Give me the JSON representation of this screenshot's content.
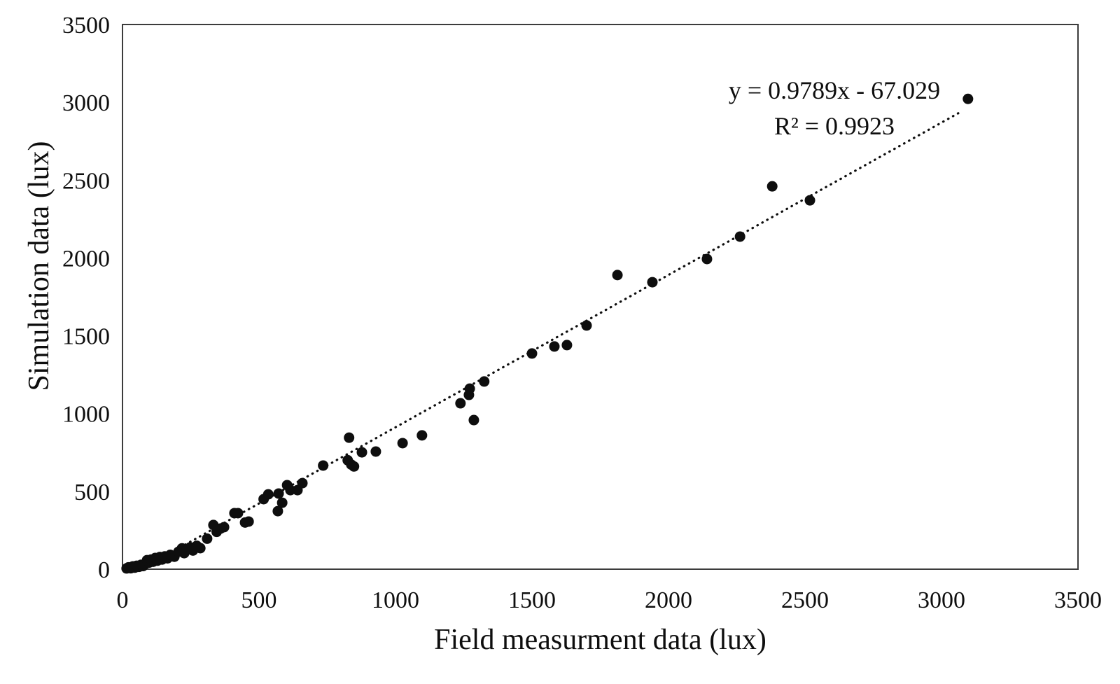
{
  "figure": {
    "annotation_line1": "y = 0.9789x - 67.029",
    "annotation_line2": "R² = 0.9923"
  },
  "chart_data": {
    "type": "scatter",
    "title": "",
    "xlabel": "Field measurment data (lux)",
    "ylabel": "Simulation data (lux)",
    "xlim": [
      0,
      3500
    ],
    "ylim": [
      0,
      3500
    ],
    "x_ticks": [
      0,
      500,
      1000,
      1500,
      2000,
      2500,
      3000,
      3500
    ],
    "y_ticks": [
      0,
      500,
      1000,
      1500,
      2000,
      2500,
      3000,
      3500
    ],
    "grid": false,
    "legend": "none",
    "marker_color": "#0e0e0e",
    "axis_color": "#3c3c3c",
    "trendline": {
      "type": "linear",
      "style": "dotted",
      "slope": 0.9789,
      "intercept": -67.029,
      "r_squared": 0.9923,
      "x_start": 68.5,
      "x_end": 3075
    },
    "points": [
      [
        15,
        5
      ],
      [
        22,
        12
      ],
      [
        30,
        6
      ],
      [
        38,
        18
      ],
      [
        45,
        10
      ],
      [
        52,
        22
      ],
      [
        60,
        15
      ],
      [
        68,
        28
      ],
      [
        75,
        20
      ],
      [
        82,
        32
      ],
      [
        90,
        58
      ],
      [
        97,
        42
      ],
      [
        105,
        62
      ],
      [
        112,
        48
      ],
      [
        120,
        72
      ],
      [
        128,
        55
      ],
      [
        137,
        78
      ],
      [
        145,
        62
      ],
      [
        155,
        82
      ],
      [
        165,
        70
      ],
      [
        175,
        92
      ],
      [
        190,
        80
      ],
      [
        205,
        112
      ],
      [
        218,
        134
      ],
      [
        226,
        103
      ],
      [
        240,
        128
      ],
      [
        248,
        140
      ],
      [
        258,
        120
      ],
      [
        272,
        150
      ],
      [
        285,
        135
      ],
      [
        310,
        196
      ],
      [
        333,
        284
      ],
      [
        345,
        240
      ],
      [
        359,
        261
      ],
      [
        372,
        270
      ],
      [
        410,
        360
      ],
      [
        423,
        360
      ],
      [
        449,
        300
      ],
      [
        462,
        306
      ],
      [
        517,
        450
      ],
      [
        534,
        481
      ],
      [
        569,
        373
      ],
      [
        572,
        486
      ],
      [
        585,
        427
      ],
      [
        603,
        540
      ],
      [
        615,
        508
      ],
      [
        641,
        508
      ],
      [
        659,
        553
      ],
      [
        735,
        666
      ],
      [
        825,
        700
      ],
      [
        838,
        672
      ],
      [
        830,
        845
      ],
      [
        848,
        660
      ],
      [
        877,
        751
      ],
      [
        928,
        756
      ],
      [
        1026,
        810
      ],
      [
        1097,
        860
      ],
      [
        1238,
        1066
      ],
      [
        1269,
        1120
      ],
      [
        1272,
        1160
      ],
      [
        1287,
        958
      ],
      [
        1325,
        1206
      ],
      [
        1500,
        1386
      ],
      [
        1582,
        1431
      ],
      [
        1628,
        1440
      ],
      [
        1700,
        1566
      ],
      [
        1813,
        1890
      ],
      [
        1941,
        1844
      ],
      [
        2141,
        1993
      ],
      [
        2262,
        2137
      ],
      [
        2380,
        2460
      ],
      [
        2518,
        2370
      ],
      [
        3097,
        3022
      ]
    ]
  }
}
